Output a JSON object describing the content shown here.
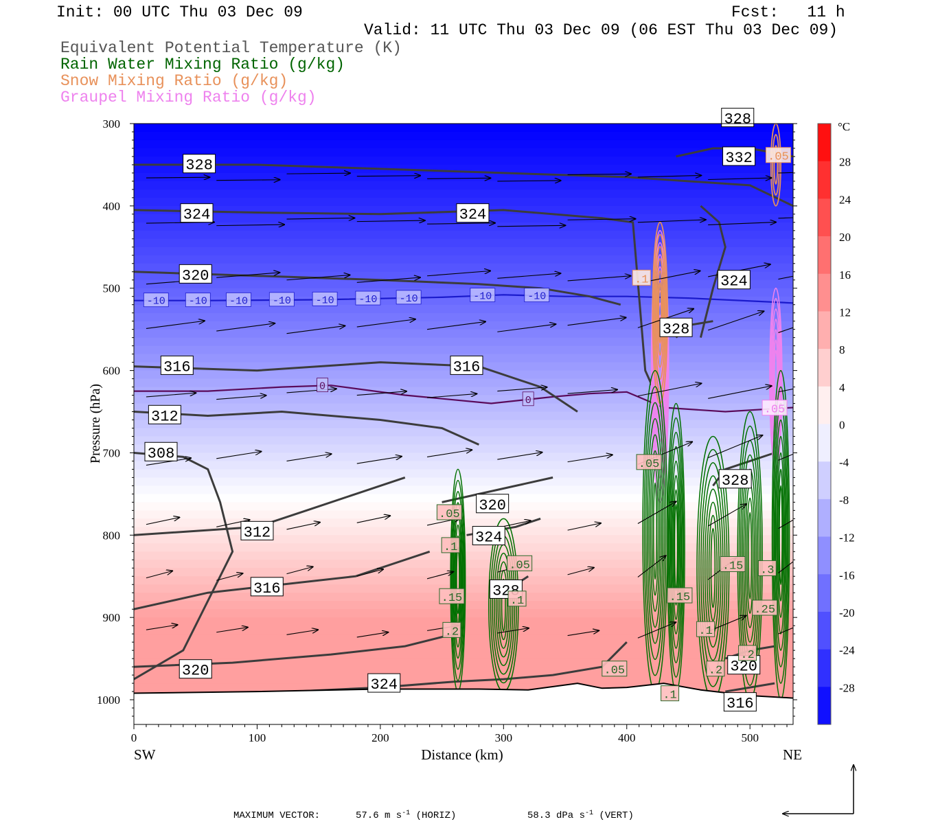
{
  "header": {
    "init": "Init: 00 UTC Thu 03 Dec 09",
    "fcst": "Fcst:   11 h",
    "valid": "Valid: 11 UTC Thu 03 Dec 09 (06 EST Thu 03 Dec 09)"
  },
  "legend": [
    {
      "label": "Equivalent Potential Temperature (K)",
      "color": "#555555"
    },
    {
      "label": "Rain Water Mixing Ratio (g/kg)",
      "color": "#006400"
    },
    {
      "label": "Snow Mixing Ratio (g/kg)",
      "color": "#e8915a"
    },
    {
      "label": "Graupel Mixing Ratio (g/kg)",
      "color": "#ee82ee"
    }
  ],
  "chart_data": {
    "type": "heatmap",
    "xlabel": "Distance (km)",
    "ylabel": "Pressure (hPa)",
    "xlim": [
      0,
      535
    ],
    "ylim": [
      1030,
      300
    ],
    "xticks": [
      "0",
      "100",
      "200",
      "300",
      "400",
      "500"
    ],
    "yticks": [
      "300",
      "400",
      "500",
      "600",
      "700",
      "800",
      "900",
      "1000"
    ],
    "left_end_label": "SW",
    "right_end_label": "NE",
    "colorbar": {
      "unit": "°C",
      "ticks": [
        "28",
        "24",
        "20",
        "16",
        "12",
        "8",
        "4",
        "0",
        "-4",
        "-8",
        "-12",
        "-16",
        "-20",
        "-24",
        "-28"
      ],
      "range": [
        -32,
        32
      ],
      "cold_color": "#0000ff",
      "warm_color": "#ff0000"
    },
    "isotherms": [
      {
        "label": "-10",
        "color": "#1a1acc",
        "points": [
          [
            0,
            515
          ],
          [
            60,
            515
          ],
          [
            150,
            514
          ],
          [
            250,
            511
          ],
          [
            300,
            508
          ],
          [
            350,
            510
          ],
          [
            400,
            510
          ],
          [
            450,
            512
          ],
          [
            535,
            518
          ]
        ],
        "label_x": [
          18,
          52,
          85,
          120,
          155,
          190,
          223,
          283,
          327
        ]
      },
      {
        "label": "0",
        "color": "#5a0a5a",
        "points": [
          [
            0,
            625
          ],
          [
            60,
            625
          ],
          [
            120,
            620
          ],
          [
            160,
            618
          ],
          [
            220,
            630
          ],
          [
            290,
            640
          ],
          [
            340,
            632
          ],
          [
            370,
            628
          ],
          [
            400,
            626
          ],
          [
            430,
            645
          ],
          [
            480,
            650
          ],
          [
            535,
            645
          ]
        ],
        "label_x": [
          153,
          320
        ]
      }
    ],
    "theta_e": [
      {
        "label": "328",
        "points": [
          [
            0,
            350
          ],
          [
            100,
            350
          ],
          [
            200,
            355
          ],
          [
            300,
            360
          ],
          [
            400,
            365
          ],
          [
            500,
            375
          ],
          [
            535,
            400
          ]
        ],
        "labels": [
          [
            53,
            349
          ],
          [
            490,
            293
          ]
        ]
      },
      {
        "label": "324",
        "points": [
          [
            0,
            405
          ],
          [
            100,
            408
          ],
          [
            200,
            410
          ],
          [
            300,
            405
          ],
          [
            380,
            415
          ],
          [
            405,
            420
          ],
          [
            415,
            600
          ],
          [
            430,
            650
          ]
        ],
        "labels": [
          [
            51,
            409
          ],
          [
            275,
            409
          ]
        ]
      },
      {
        "label": "320",
        "points": [
          [
            0,
            480
          ],
          [
            100,
            485
          ],
          [
            200,
            490
          ],
          [
            280,
            495
          ],
          [
            330,
            500
          ],
          [
            370,
            510
          ],
          [
            395,
            520
          ]
        ],
        "labels": [
          [
            50,
            483
          ]
        ]
      },
      {
        "label": "316",
        "points": [
          [
            0,
            595
          ],
          [
            100,
            600
          ],
          [
            200,
            590
          ],
          [
            280,
            595
          ],
          [
            330,
            620
          ],
          [
            360,
            650
          ]
        ],
        "labels": [
          [
            35,
            594
          ],
          [
            270,
            594
          ]
        ]
      },
      {
        "label": "312",
        "points": [
          [
            0,
            650
          ],
          [
            60,
            655
          ],
          [
            120,
            650
          ],
          [
            200,
            660
          ],
          [
            250,
            670
          ],
          [
            280,
            690
          ]
        ],
        "labels": [
          [
            25,
            654
          ]
        ]
      },
      {
        "label": "308",
        "points": [
          [
            0,
            700
          ],
          [
            40,
            705
          ],
          [
            60,
            720
          ],
          [
            70,
            760
          ],
          [
            80,
            820
          ],
          [
            60,
            880
          ],
          [
            40,
            940
          ],
          [
            0,
            975
          ]
        ],
        "labels": [
          [
            22,
            699
          ]
        ]
      },
      {
        "label": "312",
        "points": [
          [
            0,
            800
          ],
          [
            100,
            790
          ],
          [
            140,
            770
          ],
          [
            180,
            750
          ],
          [
            220,
            730
          ]
        ],
        "labels": [
          [
            100,
            795
          ]
        ]
      },
      {
        "label": "316",
        "points": [
          [
            0,
            890
          ],
          [
            60,
            870
          ],
          [
            120,
            860
          ],
          [
            180,
            850
          ],
          [
            240,
            820
          ]
        ],
        "labels": [
          [
            108,
            863
          ]
        ]
      },
      {
        "label": "320",
        "points": [
          [
            0,
            960
          ],
          [
            80,
            955
          ],
          [
            160,
            945
          ],
          [
            220,
            935
          ],
          [
            260,
            920
          ]
        ],
        "labels": [
          [
            50,
            963
          ]
        ]
      },
      {
        "label": "324",
        "points": [
          [
            130,
            990
          ],
          [
            200,
            985
          ],
          [
            260,
            978
          ],
          [
            300,
            975
          ],
          [
            340,
            970
          ],
          [
            380,
            960
          ],
          [
            400,
            930
          ]
        ],
        "labels": [
          [
            203,
            980
          ]
        ]
      },
      {
        "label": "320",
        "points": [
          [
            250,
            760
          ],
          [
            280,
            750
          ],
          [
            310,
            740
          ],
          [
            340,
            730
          ]
        ],
        "labels": [
          [
            291,
            762
          ]
        ]
      },
      {
        "label": "324",
        "points": [
          [
            270,
            800
          ],
          [
            290,
            795
          ],
          [
            310,
            790
          ],
          [
            330,
            780
          ]
        ],
        "labels": [
          [
            288,
            801
          ]
        ]
      },
      {
        "label": "328",
        "points": [
          [
            290,
            870
          ],
          [
            310,
            860
          ],
          [
            320,
            850
          ]
        ],
        "labels": [
          [
            302,
            866
          ]
        ]
      },
      {
        "label": "324",
        "points": [
          [
            460,
            400
          ],
          [
            475,
            420
          ],
          [
            480,
            450
          ],
          [
            470,
            500
          ],
          [
            460,
            560
          ]
        ],
        "labels": [
          [
            487,
            490
          ]
        ]
      },
      {
        "label": "328",
        "points": [
          [
            440,
            560
          ],
          [
            450,
            545
          ],
          [
            470,
            540
          ]
        ],
        "labels": [
          [
            440,
            548
          ]
        ]
      },
      {
        "label": "328",
        "points": [
          [
            470,
            740
          ],
          [
            480,
            720
          ],
          [
            500,
            710
          ],
          [
            520,
            700
          ]
        ],
        "labels": [
          [
            488,
            732
          ]
        ]
      },
      {
        "label": "332",
        "points": [
          [
            440,
            340
          ],
          [
            470,
            330
          ],
          [
            500,
            330
          ],
          [
            535,
            340
          ]
        ],
        "labels": [
          [
            491,
            340
          ]
        ]
      },
      {
        "label": "320",
        "points": [
          [
            480,
            950
          ],
          [
            500,
            940
          ],
          [
            520,
            935
          ]
        ],
        "labels": [
          [
            495,
            958
          ]
        ]
      },
      {
        "label": "316",
        "points": [
          [
            480,
            990
          ],
          [
            500,
            985
          ],
          [
            520,
            980
          ]
        ],
        "labels": [
          [
            492,
            1003
          ]
        ]
      }
    ],
    "rain_labels": [
      {
        "text": ".05",
        "x": 256,
        "y": 773
      },
      {
        "text": ".1",
        "x": 257,
        "y": 813
      },
      {
        "text": ".15",
        "x": 258,
        "y": 875
      },
      {
        "text": ".2",
        "x": 258,
        "y": 916
      },
      {
        "text": ".05",
        "x": 313,
        "y": 835
      },
      {
        "text": ".1",
        "x": 311,
        "y": 878
      },
      {
        "text": ".05",
        "x": 390,
        "y": 963
      },
      {
        "text": ".15",
        "x": 443,
        "y": 874
      },
      {
        "text": ".1",
        "x": 435,
        "y": 993
      },
      {
        "text": ".1",
        "x": 464,
        "y": 915
      },
      {
        "text": ".2",
        "x": 472,
        "y": 963
      },
      {
        "text": ".15",
        "x": 486,
        "y": 836
      },
      {
        "text": ".3",
        "x": 514,
        "y": 841
      },
      {
        "text": ".25",
        "x": 512,
        "y": 889
      },
      {
        "text": ".2",
        "x": 498,
        "y": 944
      },
      {
        "text": ".05",
        "x": 418,
        "y": 712
      }
    ],
    "snow_labels": [
      {
        "text": ".1",
        "x": 412,
        "y": 488
      },
      {
        "text": ".05",
        "x": 523,
        "y": 339
      }
    ],
    "graupel_labels": [
      {
        "text": ".05",
        "x": 520,
        "y": 646
      }
    ],
    "wind_max": {
      "title": "MAXIMUM VECTOR:",
      "horiz": "57.6 m s",
      "horiz_unit": "(HORIZ)",
      "vert": "58.3 dPa s",
      "vert_unit": "(VERT)",
      "exp": "-1"
    }
  }
}
